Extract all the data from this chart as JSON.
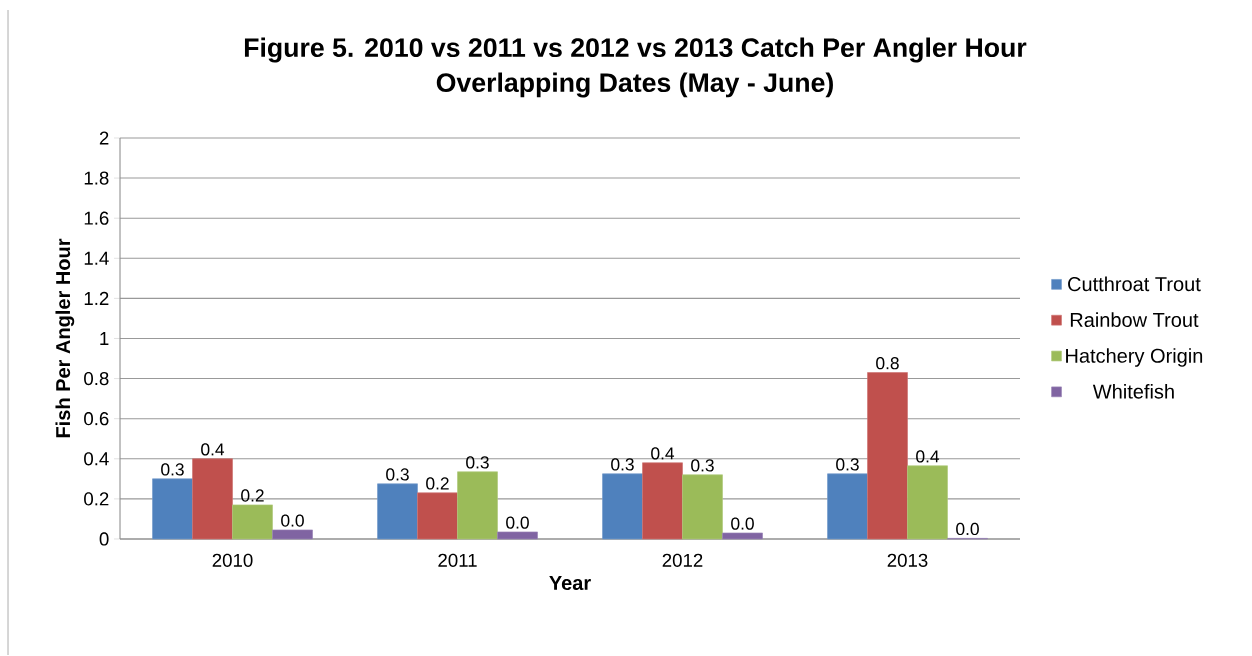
{
  "chart_data": {
    "type": "bar",
    "title": "Figure 5. 2010 vs 2011 vs 2012 vs 2013 Catch Per Angler Hour",
    "subtitle": "Overlapping Dates (May - June)",
    "xlabel": "Year",
    "ylabel": "Fish Per Angler Hour",
    "categories": [
      "2010",
      "2011",
      "2012",
      "2013"
    ],
    "series": [
      {
        "name": "Cutthroat Trout",
        "color": "#4f81bd",
        "values": [
          0.3,
          0.275,
          0.325,
          0.325
        ],
        "value_labels": [
          "0.3",
          "0.3",
          "0.3",
          "0.3"
        ]
      },
      {
        "name": "Rainbow Trout",
        "color": "#c0504d",
        "values": [
          0.4,
          0.23,
          0.38,
          0.83
        ],
        "value_labels": [
          "0.4",
          "0.2",
          "0.4",
          "0.8"
        ]
      },
      {
        "name": "Hatchery Origin",
        "color": "#9bbb59",
        "values": [
          0.17,
          0.335,
          0.32,
          0.365
        ],
        "value_labels": [
          "0.2",
          "0.3",
          "0.3",
          "0.4"
        ]
      },
      {
        "name": "Whitefish",
        "color": "#8064a2",
        "values": [
          0.045,
          0.035,
          0.03,
          0.003
        ],
        "value_labels": [
          "0.0",
          "0.0",
          "0.0",
          "0.0"
        ]
      }
    ],
    "ylim": [
      0,
      2
    ],
    "yticks": [
      0,
      0.2,
      0.4,
      0.6,
      0.8,
      1,
      1.2,
      1.4,
      1.6,
      1.8,
      2
    ],
    "grid": "y",
    "legend": "right"
  }
}
